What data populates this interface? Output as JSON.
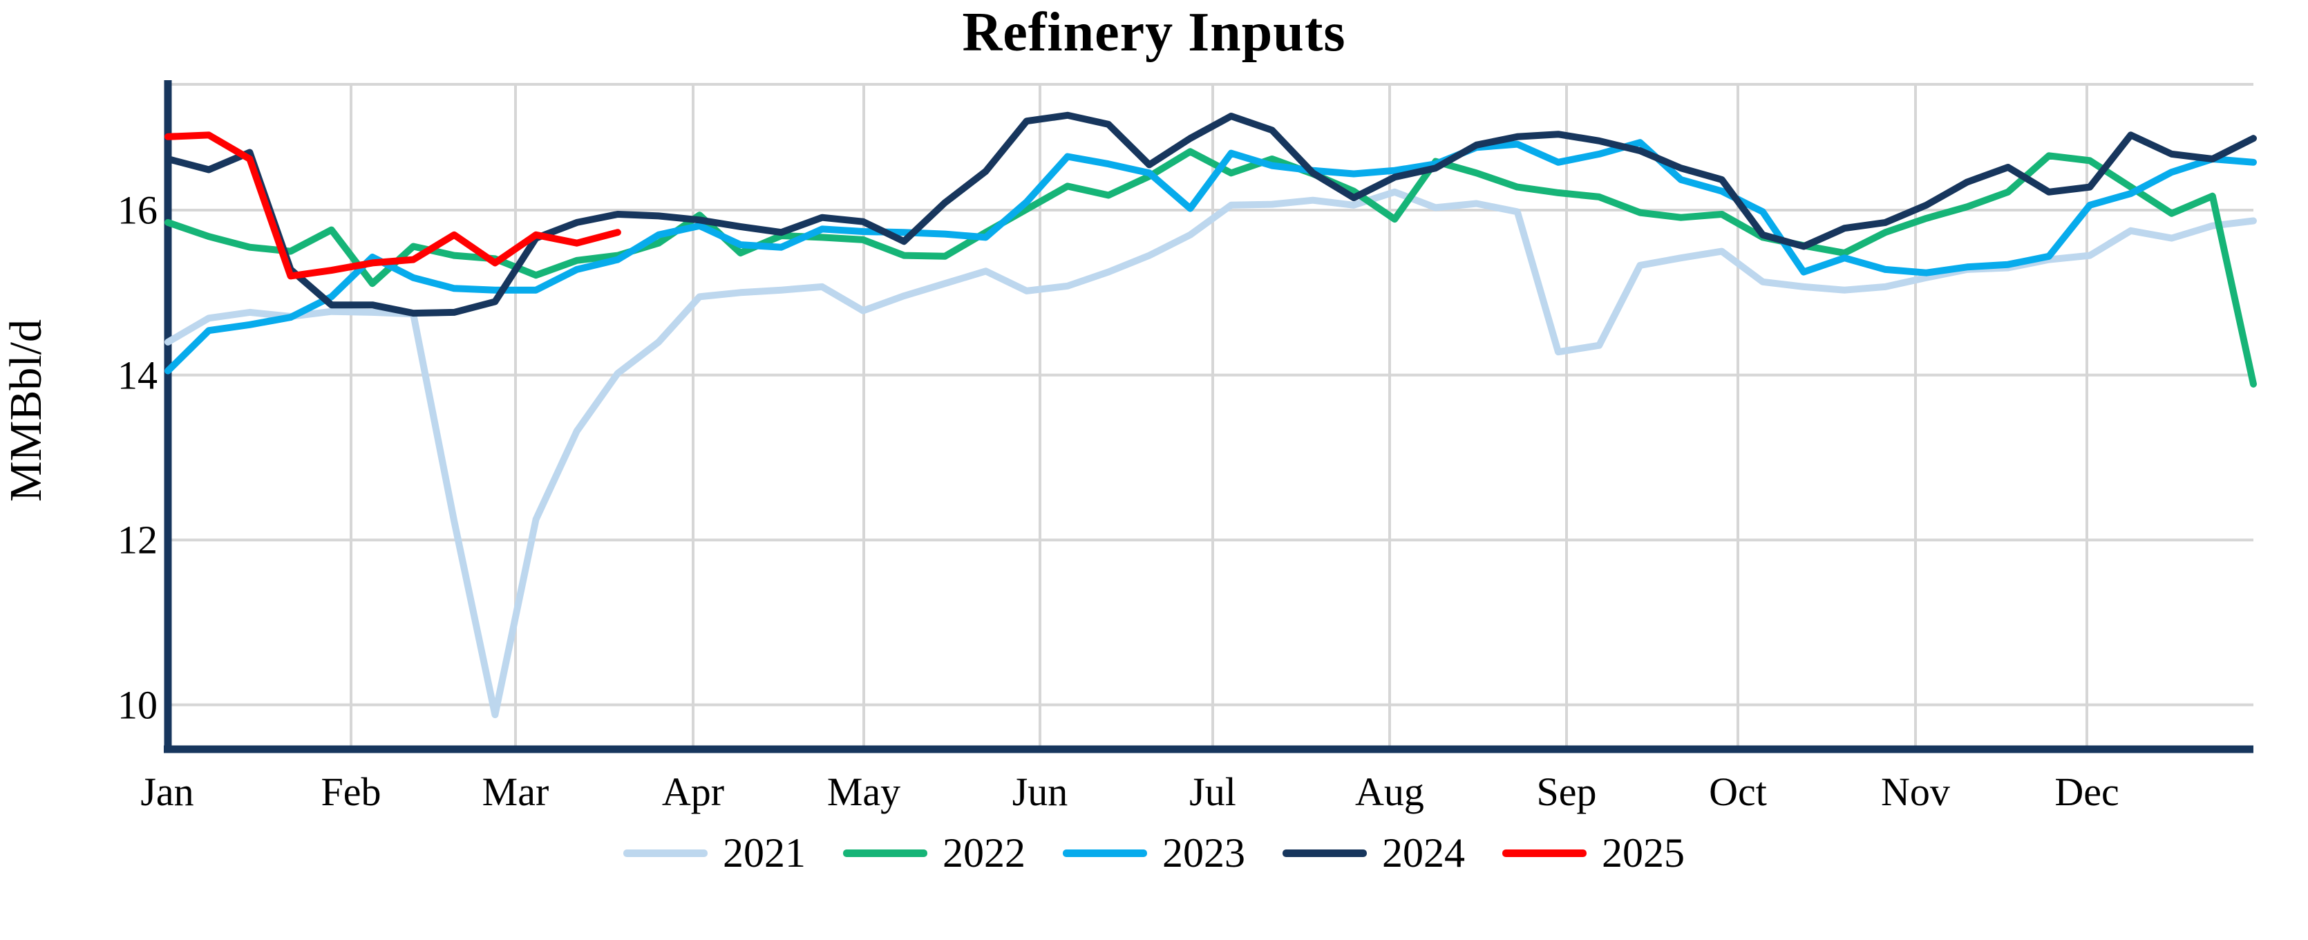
{
  "title": "Refinery Inputs",
  "y_axis": {
    "label": "MMBbl/d",
    "ticks": [
      {
        "label": "16",
        "value": 16
      },
      {
        "label": "14",
        "value": 14
      },
      {
        "label": "12",
        "value": 12
      },
      {
        "label": "10",
        "value": 10
      }
    ]
  },
  "x_axis": {
    "months": [
      "Jan",
      "Feb",
      "Mar",
      "Apr",
      "May",
      "Jun",
      "Jul",
      "Aug",
      "Sep",
      "Oct",
      "Nov",
      "Dec"
    ]
  },
  "colors": {
    "grid": "#D6D6D6",
    "axis": "#17365D",
    "plot_border": "#D6D6D6"
  },
  "chart_data": {
    "type": "line",
    "title": "Refinery Inputs",
    "xlabel": "",
    "ylabel": "MMBbl/d",
    "x_unit": "weekly points, Jan through Dec",
    "ylim": [
      9.45,
      17.55
    ],
    "ytick_values": [
      16,
      14,
      12,
      10
    ],
    "grid": true,
    "legend_position": "bottom",
    "series": [
      {
        "name": "2021",
        "color": "#BDD7EE",
        "values": [
          14.4,
          14.69,
          14.76,
          14.71,
          14.77,
          14.76,
          14.74,
          12.23,
          9.88,
          12.25,
          13.32,
          14.02,
          14.4,
          14.95,
          15.0,
          15.03,
          15.07,
          14.78,
          14.96,
          15.11,
          15.26,
          15.02,
          15.08,
          15.25,
          15.45,
          15.7,
          16.06,
          16.07,
          16.12,
          16.06,
          16.22,
          16.03,
          16.08,
          15.98,
          14.28,
          14.36,
          15.33,
          15.42,
          15.5,
          15.13,
          15.07,
          15.03,
          15.07,
          15.18,
          15.28,
          15.3,
          15.4,
          15.45,
          15.75,
          15.66,
          15.81,
          15.87
        ]
      },
      {
        "name": "2022",
        "color": "#16B477",
        "values": [
          15.85,
          15.68,
          15.55,
          15.5,
          15.76,
          15.11,
          15.56,
          15.45,
          15.41,
          15.21,
          15.39,
          15.45,
          15.6,
          15.94,
          15.48,
          15.69,
          15.67,
          15.64,
          15.45,
          15.44,
          15.73,
          16.01,
          16.29,
          16.18,
          16.41,
          16.71,
          16.45,
          16.62,
          16.44,
          16.23,
          15.89,
          16.59,
          16.45,
          16.28,
          16.21,
          16.16,
          15.97,
          15.91,
          15.95,
          15.67,
          15.57,
          15.48,
          15.73,
          15.9,
          16.04,
          16.22,
          16.66,
          16.6,
          16.28,
          15.96,
          16.17,
          13.89
        ]
      },
      {
        "name": "2023",
        "color": "#07ABEC",
        "values": [
          14.05,
          14.54,
          14.61,
          14.7,
          14.95,
          15.43,
          15.18,
          15.05,
          15.03,
          15.03,
          15.28,
          15.4,
          15.7,
          15.81,
          15.58,
          15.55,
          15.77,
          15.74,
          15.73,
          15.71,
          15.67,
          16.1,
          16.65,
          16.56,
          16.45,
          16.02,
          16.69,
          16.54,
          16.48,
          16.44,
          16.48,
          16.56,
          16.76,
          16.8,
          16.58,
          16.68,
          16.82,
          16.37,
          16.23,
          15.98,
          15.25,
          15.42,
          15.28,
          15.24,
          15.31,
          15.34,
          15.44,
          16.06,
          16.2,
          16.46,
          16.62,
          16.58
        ]
      },
      {
        "name": "2024",
        "color": "#17365D",
        "values": [
          16.62,
          16.49,
          16.7,
          15.28,
          14.85,
          14.85,
          14.75,
          14.76,
          14.89,
          15.66,
          15.85,
          15.95,
          15.93,
          15.88,
          15.8,
          15.73,
          15.91,
          15.86,
          15.62,
          16.09,
          16.47,
          17.08,
          17.15,
          17.04,
          16.55,
          16.87,
          17.14,
          16.97,
          16.45,
          16.15,
          16.4,
          16.51,
          16.79,
          16.89,
          16.92,
          16.84,
          16.72,
          16.51,
          16.37,
          15.7,
          15.56,
          15.78,
          15.85,
          16.06,
          16.34,
          16.52,
          16.22,
          16.28,
          16.91,
          16.68,
          16.62,
          16.87
        ]
      },
      {
        "name": "2025",
        "color": "#FF0000",
        "values": [
          16.89,
          16.91,
          16.62,
          15.2,
          15.27,
          15.36,
          15.4,
          15.7,
          15.36,
          15.7,
          15.6,
          15.73
        ]
      }
    ]
  },
  "legend": {
    "entries": [
      "2021",
      "2022",
      "2023",
      "2024",
      "2025"
    ]
  }
}
